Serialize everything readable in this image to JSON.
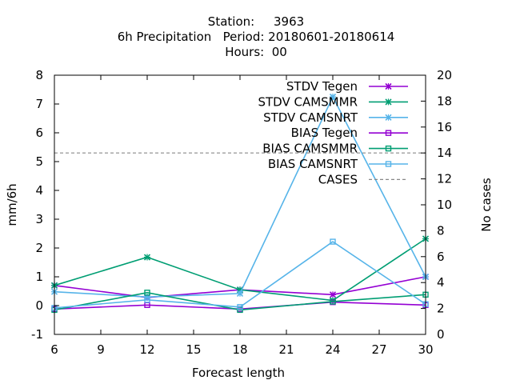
{
  "chart_data": {
    "type": "line",
    "title_lines": [
      "Station:     3963",
      "6h Precipitation   Period: 20180601-20180614",
      "Hours:  00"
    ],
    "xlabel": "Forecast length",
    "ylabel": "mm/6h",
    "y2label": "No cases",
    "xlim": [
      6,
      30
    ],
    "ylim": [
      -1,
      8
    ],
    "y2lim": [
      0,
      20
    ],
    "xticks": [
      "6",
      "9",
      "12",
      "15",
      "18",
      "21",
      "24",
      "27",
      "30"
    ],
    "yticks": [
      "-1",
      "0",
      "1",
      "2",
      "3",
      "4",
      "5",
      "6",
      "7",
      "8"
    ],
    "y2ticks": [
      "0",
      "2",
      "4",
      "6",
      "8",
      "10",
      "12",
      "14",
      "16",
      "18",
      "20"
    ],
    "x": [
      6,
      12,
      18,
      24,
      30
    ],
    "series": [
      {
        "name": "STDV Tegen",
        "axis": "y1",
        "marker": "x",
        "color": "#9400D3",
        "values": [
          0.7,
          0.28,
          0.55,
          0.38,
          1.0
        ]
      },
      {
        "name": "STDV CAMSMMR",
        "axis": "y1",
        "marker": "x",
        "color": "#009E73",
        "values": [
          0.7,
          1.68,
          0.55,
          0.18,
          2.32
        ]
      },
      {
        "name": "STDV CAMSNRT",
        "axis": "y1",
        "marker": "x",
        "color": "#56B4E9",
        "values": [
          0.48,
          0.3,
          0.42,
          7.25,
          1.0
        ]
      },
      {
        "name": "BIAS Tegen",
        "axis": "y1",
        "marker": "square",
        "color": "#9400D3",
        "values": [
          -0.12,
          0.02,
          -0.12,
          0.12,
          0.02
        ]
      },
      {
        "name": "BIAS CAMSMMR",
        "axis": "y1",
        "marker": "square",
        "color": "#009E73",
        "values": [
          -0.15,
          0.45,
          -0.15,
          0.14,
          0.38
        ]
      },
      {
        "name": "BIAS CAMSNRT",
        "axis": "y1",
        "marker": "square",
        "color": "#56B4E9",
        "values": [
          -0.08,
          0.2,
          -0.05,
          2.22,
          0.05
        ]
      },
      {
        "name": "CASES",
        "axis": "y2",
        "marker": "none",
        "dashed": true,
        "color": "#888888",
        "values": [
          14,
          14,
          14,
          14,
          14
        ]
      }
    ],
    "legend_position": "top-right",
    "grid": false
  }
}
